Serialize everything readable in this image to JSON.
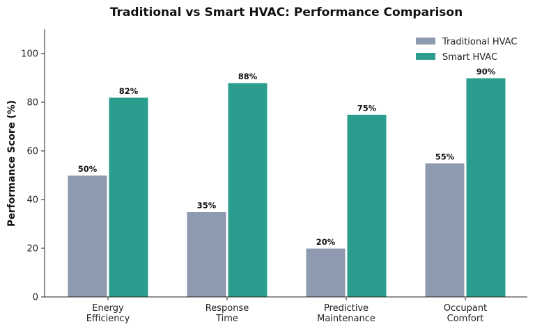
{
  "chart_data": {
    "type": "bar",
    "title": "Traditional vs Smart HVAC: Performance Comparison",
    "xlabel": "",
    "ylabel": "Performance Score (%)",
    "ylim": [
      0,
      110
    ],
    "yticks": [
      0,
      20,
      40,
      60,
      80,
      100
    ],
    "categories": [
      [
        "Energy",
        "Efficiency"
      ],
      [
        "Response",
        "Time"
      ],
      [
        "Predictive",
        "Maintenance"
      ],
      [
        "Occupant",
        "Comfort"
      ]
    ],
    "series": [
      {
        "name": "Traditional HVAC",
        "values": [
          50,
          35,
          20,
          55
        ],
        "labels": [
          "50%",
          "35%",
          "20%",
          "55%"
        ],
        "color": "#8e9ab0"
      },
      {
        "name": "Smart HVAC",
        "values": [
          82,
          88,
          75,
          90
        ],
        "labels": [
          "82%",
          "88%",
          "75%",
          "90%"
        ],
        "color": "#2a9d8f"
      }
    ],
    "legend": "top-right",
    "grid": false
  }
}
